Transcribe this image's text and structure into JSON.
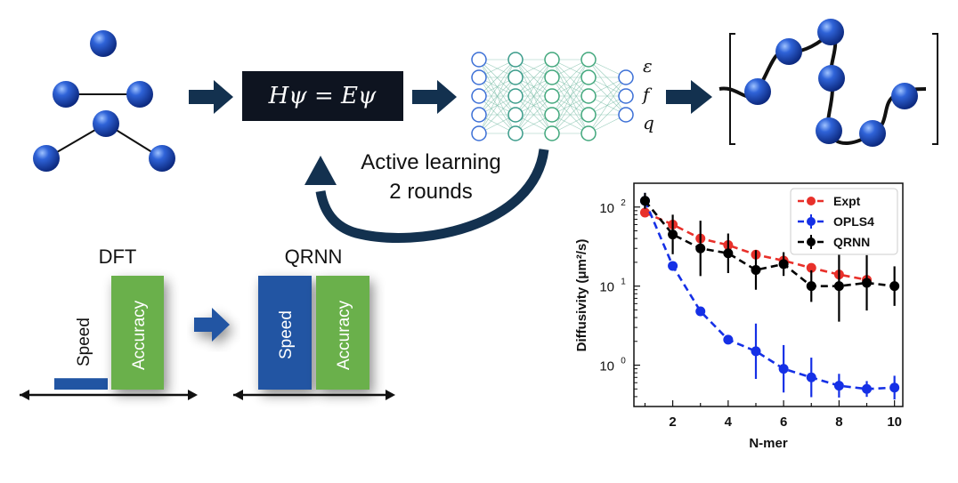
{
  "colors": {
    "atom": "#1a44b8",
    "arrow": "#13314f",
    "equation_bg": "#0e1420",
    "bar_blue": "#2155a3",
    "bar_green": "#6ab04c",
    "expt": "#e8302a",
    "opls4": "#1530e6",
    "qrnn": "#000000"
  },
  "equation": "Hψ = Eψ",
  "nn_outputs": [
    "ε",
    "f",
    "q"
  ],
  "active_learning": {
    "line1": "Active learning",
    "line2": "2 rounds"
  },
  "comparison": {
    "left": {
      "title": "DFT",
      "speed_label": "Speed",
      "accuracy_label": "Accuracy",
      "speed": 0.1,
      "accuracy": 1.0
    },
    "right": {
      "title": "QRNN",
      "speed_label": "Speed",
      "accuracy_label": "Accuracy",
      "speed": 1.0,
      "accuracy": 1.0
    }
  },
  "chart_data": {
    "type": "line",
    "xlabel": "N-mer",
    "ylabel": "Diffusivity (μm²/s)",
    "yscale": "log",
    "xlim": [
      0.6,
      10.3
    ],
    "ylim": [
      0.3,
      200
    ],
    "x_ticks": [
      2,
      4,
      6,
      8,
      10
    ],
    "y_ticks": [
      {
        "value": 1,
        "base": "10",
        "exp": "0"
      },
      {
        "value": 10,
        "base": "10",
        "exp": "1"
      },
      {
        "value": 100,
        "base": "10",
        "exp": "2"
      }
    ],
    "legend_position": "top-right",
    "series": [
      {
        "name": "Expt",
        "color": "#e8302a",
        "marker": "circle",
        "x": [
          1,
          2,
          3,
          4,
          5,
          6,
          7,
          8,
          9
        ],
        "y": [
          85,
          60,
          40,
          33,
          25,
          21,
          17,
          14,
          12
        ],
        "err": [
          0,
          0,
          0,
          0,
          0,
          0,
          0,
          0,
          0
        ]
      },
      {
        "name": "OPLS4",
        "color": "#1530e6",
        "marker": "circle",
        "x": [
          1,
          2,
          3,
          4,
          5,
          6,
          7,
          8,
          9,
          10
        ],
        "y": [
          120,
          18,
          4.8,
          2.1,
          1.5,
          0.9,
          0.7,
          0.55,
          0.5,
          0.52
        ],
        "err": [
          0.1,
          0.05,
          0.05,
          0.05,
          0.35,
          0.3,
          0.25,
          0.15,
          0.1,
          0.15
        ]
      },
      {
        "name": "QRNN",
        "color": "#000000",
        "marker": "circle",
        "x": [
          1,
          2,
          3,
          4,
          5,
          6,
          7,
          8,
          9,
          10
        ],
        "y": [
          120,
          45,
          30,
          26,
          16,
          19,
          10,
          10,
          11,
          10
        ],
        "err": [
          0.1,
          0.25,
          0.35,
          0.25,
          0.25,
          0.15,
          0.2,
          0.45,
          0.35,
          0.25
        ]
      }
    ]
  }
}
